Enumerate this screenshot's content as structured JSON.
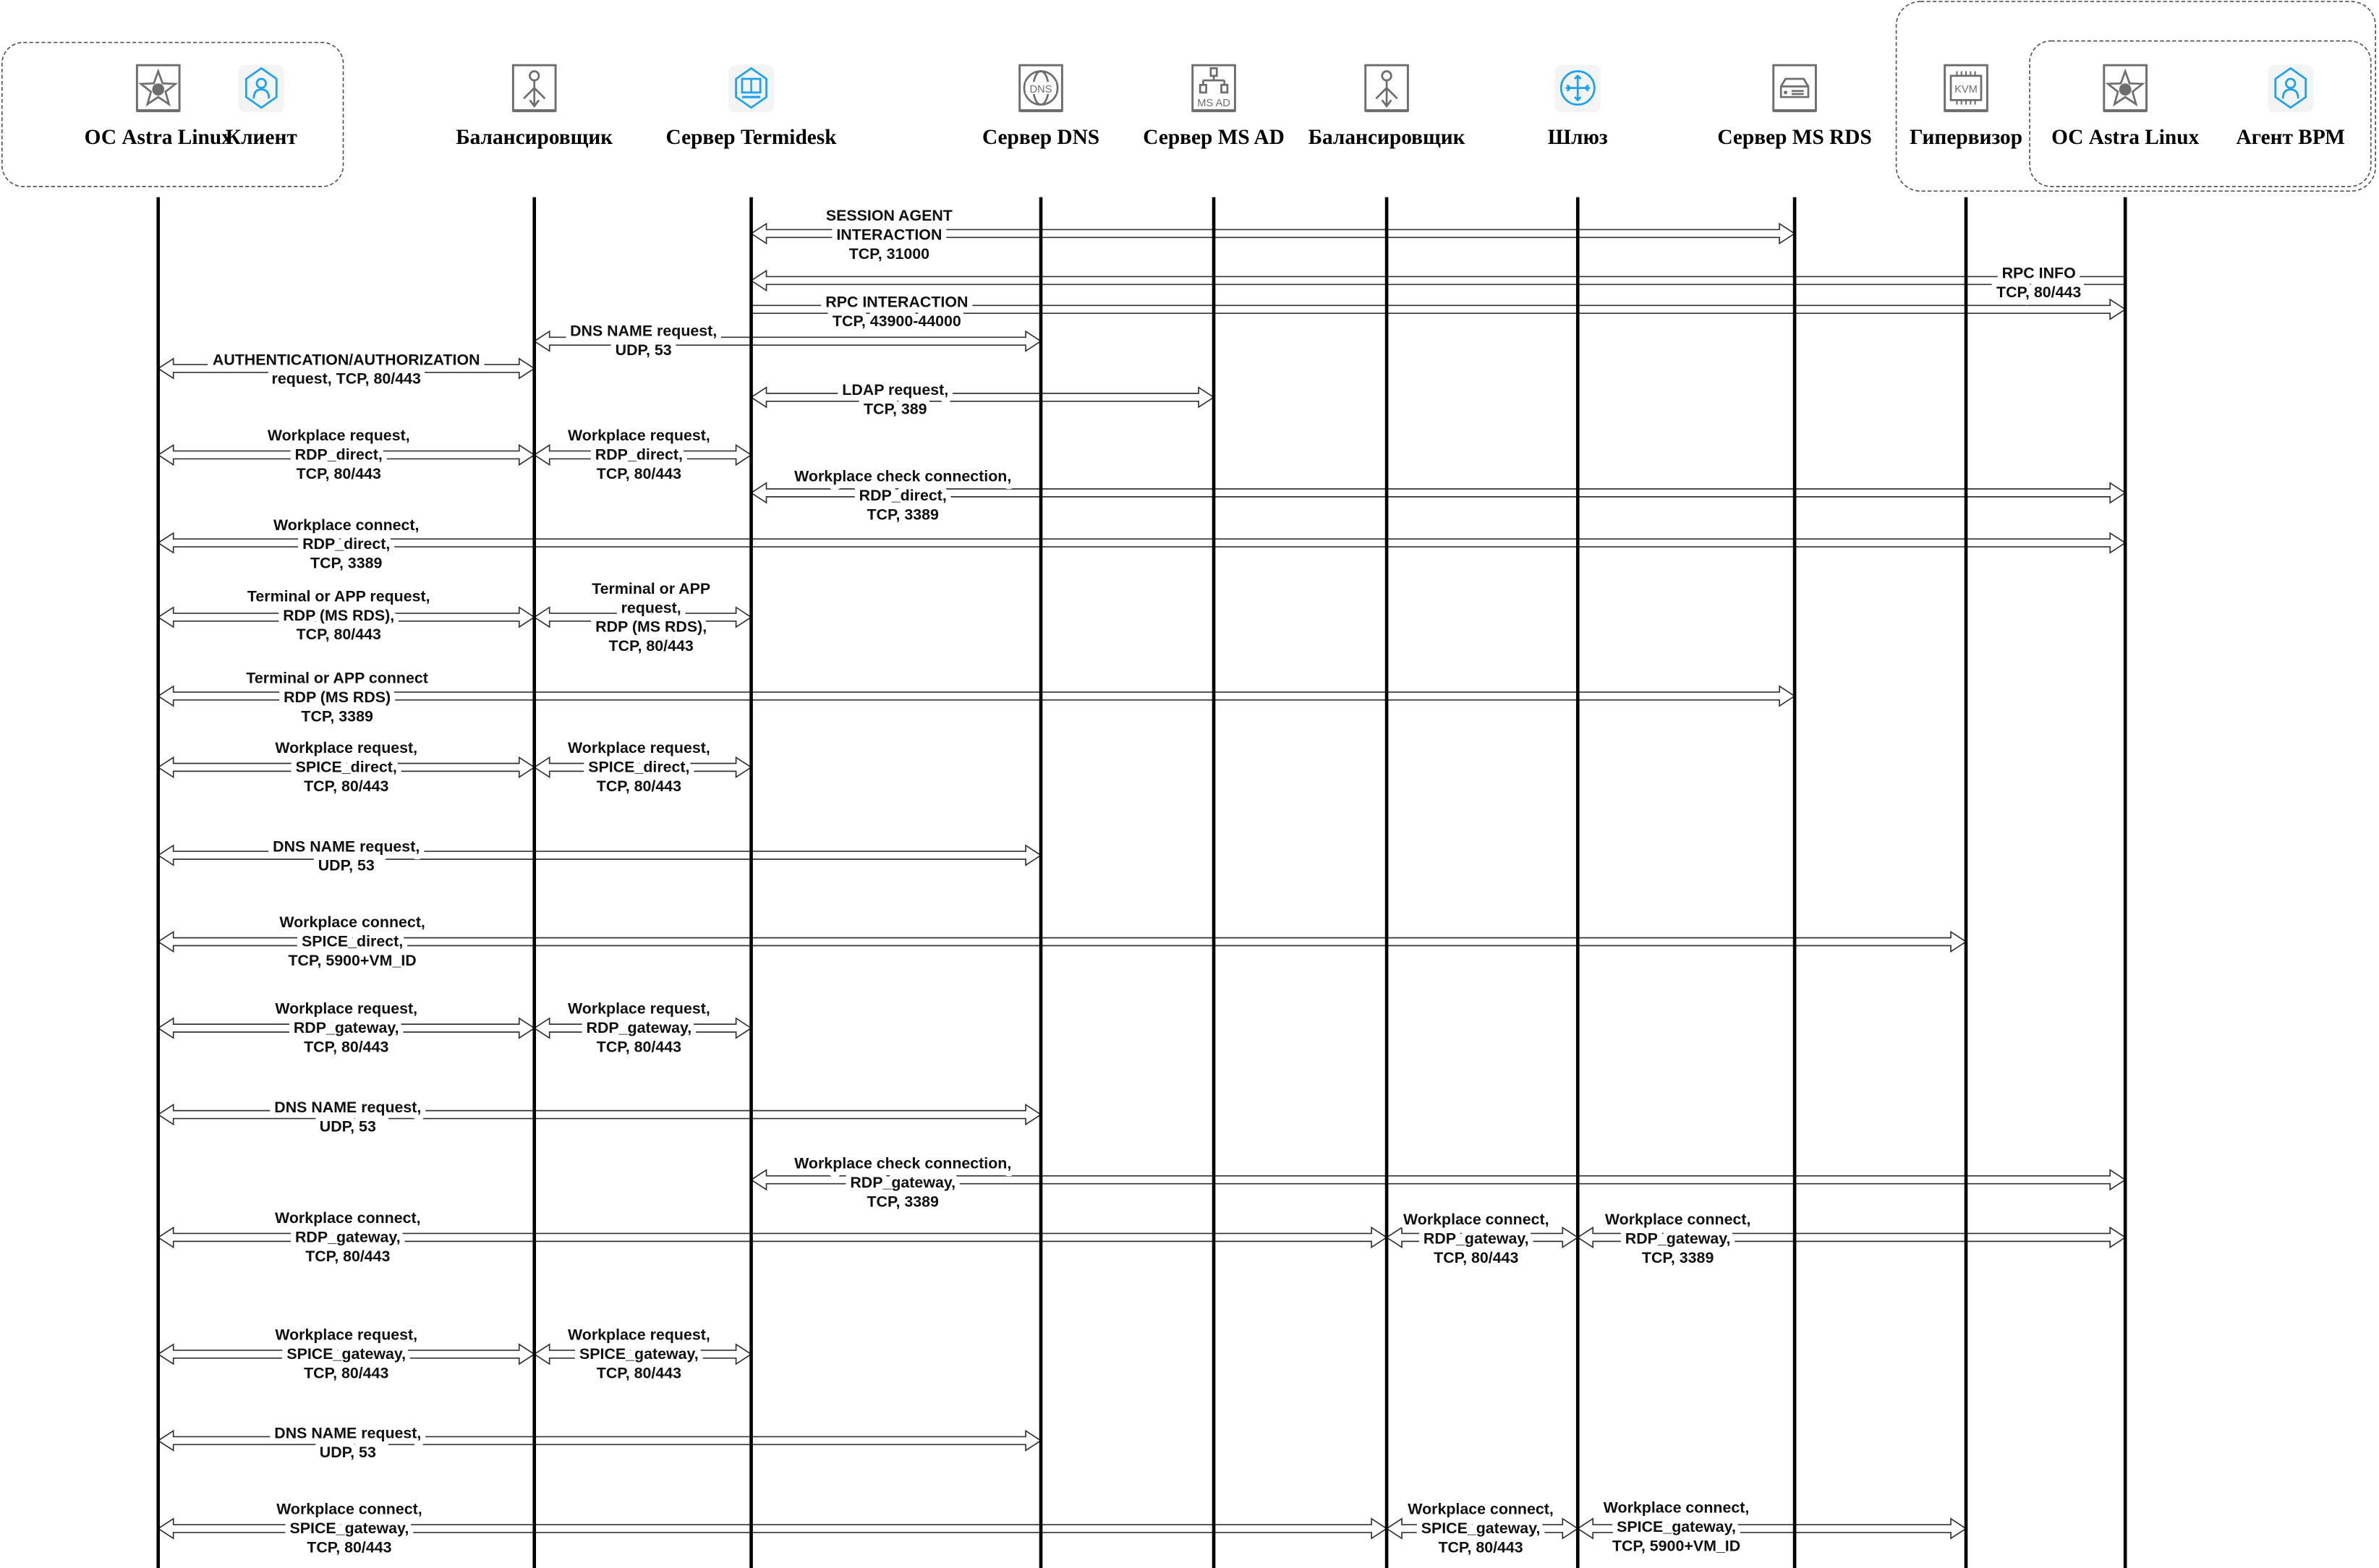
{
  "participants": [
    {
      "label": "ОС Astra Linux",
      "icon": "astra-star-icon",
      "lifeline": true
    },
    {
      "label": "Клиент",
      "icon": "client-user-icon",
      "lifeline": false
    },
    {
      "label": "Балансировщик",
      "icon": "balancer-icon",
      "lifeline": true
    },
    {
      "label": "Сервер Termidesk",
      "icon": "termidesk-server-icon",
      "lifeline": true
    },
    {
      "label": "Сервер DNS",
      "icon": "dns-globe-icon",
      "lifeline": true
    },
    {
      "label": "Сервер MS AD",
      "icon": "ms-ad-tree-icon",
      "icon_text": "MS AD",
      "lifeline": true
    },
    {
      "label": "Балансировщик",
      "icon": "balancer-icon",
      "lifeline": true
    },
    {
      "label": "Шлюз",
      "icon": "gateway-router-icon",
      "lifeline": true
    },
    {
      "label": "Сервер MS RDS",
      "icon": "rds-server-icon",
      "lifeline": true
    },
    {
      "label": "Гипервизор",
      "icon": "kvm-chip-icon",
      "icon_text": "KVM",
      "lifeline": true
    },
    {
      "label": "ОС Astra Linux",
      "icon": "astra-star-icon",
      "lifeline": true
    },
    {
      "label": "Агент ВРМ",
      "icon": "agent-user-icon",
      "lifeline": false
    }
  ],
  "messages": [
    {
      "from": 3,
      "to": 8,
      "heads": "both",
      "lines": [
        "SESSION AGENT",
        "INTERACTION",
        "TCP, 31000"
      ]
    },
    {
      "from": 3,
      "to": 10,
      "heads": "left",
      "lines": [
        "RPC INFO",
        "TCP, 80/443"
      ]
    },
    {
      "from": 3,
      "to": 10,
      "heads": "right",
      "lines": [
        "RPC INTERACTION",
        "TCP, 43900-44000"
      ]
    },
    {
      "from": 2,
      "to": 4,
      "heads": "both",
      "lines": [
        "DNS NAME request,",
        "UDP, 53"
      ]
    },
    {
      "from": 0,
      "to": 2,
      "heads": "both",
      "lines": [
        "AUTHENTICATION/AUTHORIZATION",
        "request, TCP, 80/443"
      ]
    },
    {
      "from": 3,
      "to": 5,
      "heads": "both",
      "lines": [
        "LDAP request,",
        "TCP, 389"
      ]
    },
    {
      "from": 0,
      "to": 2,
      "heads": "both",
      "lines": [
        "Workplace request,",
        "RDP_direct,",
        "TCP, 80/443"
      ]
    },
    {
      "from": 2,
      "to": 3,
      "heads": "both",
      "lines": [
        "Workplace request,",
        "RDP_direct,",
        "TCP, 80/443"
      ]
    },
    {
      "from": 3,
      "to": 10,
      "heads": "both",
      "lines": [
        "Workplace check connection,",
        "RDP_direct,",
        "TCP, 3389"
      ]
    },
    {
      "from": 0,
      "to": 10,
      "heads": "both",
      "lines": [
        "Workplace connect,",
        "RDP_direct,",
        "TCP, 3389"
      ]
    },
    {
      "from": 0,
      "to": 2,
      "heads": "both",
      "lines": [
        "Terminal or APP request,",
        "RDP (MS RDS),",
        "TCP, 80/443"
      ]
    },
    {
      "from": 2,
      "to": 3,
      "heads": "both",
      "lines": [
        "Terminal or APP",
        "request,",
        "RDP (MS RDS),",
        "TCP, 80/443"
      ]
    },
    {
      "from": 0,
      "to": 8,
      "heads": "both",
      "lines": [
        "Terminal or APP connect",
        "RDP (MS RDS)",
        "TCP, 3389"
      ]
    },
    {
      "from": 0,
      "to": 2,
      "heads": "both",
      "lines": [
        "Workplace request,",
        "SPICE_direct,",
        "TCP, 80/443"
      ]
    },
    {
      "from": 2,
      "to": 3,
      "heads": "both",
      "lines": [
        "Workplace request,",
        "SPICE_direct,",
        "TCP, 80/443"
      ]
    },
    {
      "from": 0,
      "to": 4,
      "heads": "both",
      "lines": [
        "DNS NAME request,",
        "UDP, 53"
      ]
    },
    {
      "from": 0,
      "to": 9,
      "heads": "both",
      "lines": [
        "Workplace connect,",
        "SPICE_direct,",
        "TCP, 5900+VM_ID"
      ]
    },
    {
      "from": 0,
      "to": 2,
      "heads": "both",
      "lines": [
        "Workplace request,",
        "RDP_gateway,",
        "TCP, 80/443"
      ]
    },
    {
      "from": 2,
      "to": 3,
      "heads": "both",
      "lines": [
        "Workplace request,",
        "RDP_gateway,",
        "TCP, 80/443"
      ]
    },
    {
      "from": 0,
      "to": 4,
      "heads": "both",
      "lines": [
        "DNS NAME request,",
        "UDP, 53"
      ]
    },
    {
      "from": 3,
      "to": 10,
      "heads": "both",
      "lines": [
        "Workplace check connection,",
        "RDP_gateway,",
        "TCP, 3389"
      ]
    },
    {
      "from": 0,
      "to": 6,
      "heads": "both",
      "lines": [
        "Workplace connect,",
        "RDP_gateway,",
        "TCP, 80/443"
      ]
    },
    {
      "from": 6,
      "to": 7,
      "heads": "both",
      "lines": [
        "Workplace connect,",
        "RDP_gateway,",
        "TCP, 80/443"
      ]
    },
    {
      "from": 7,
      "to": 10,
      "heads": "both",
      "lines": [
        "Workplace connect,",
        "RDP_gateway,",
        "TCP, 3389"
      ]
    },
    {
      "from": 0,
      "to": 2,
      "heads": "both",
      "lines": [
        "Workplace request,",
        "SPICE_gateway,",
        "TCP, 80/443"
      ]
    },
    {
      "from": 2,
      "to": 3,
      "heads": "both",
      "lines": [
        "Workplace request,",
        "SPICE_gateway,",
        "TCP, 80/443"
      ]
    },
    {
      "from": 0,
      "to": 4,
      "heads": "both",
      "lines": [
        "DNS NAME request,",
        "UDP, 53"
      ]
    },
    {
      "from": 0,
      "to": 6,
      "heads": "both",
      "lines": [
        "Workplace connect,",
        "SPICE_gateway,",
        "TCP, 80/443"
      ]
    },
    {
      "from": 6,
      "to": 7,
      "heads": "both",
      "lines": [
        "Workplace connect,",
        "SPICE_gateway,",
        "TCP, 80/443"
      ]
    },
    {
      "from": 7,
      "to": 9,
      "heads": "both",
      "lines": [
        "Workplace connect,",
        "SPICE_gateway,",
        "TCP, 5900+VM_ID"
      ]
    }
  ],
  "colors": {
    "accent_icon": "#1aa3f0",
    "gray_icon": "#6e6e6e",
    "lifeline": "#000000"
  }
}
